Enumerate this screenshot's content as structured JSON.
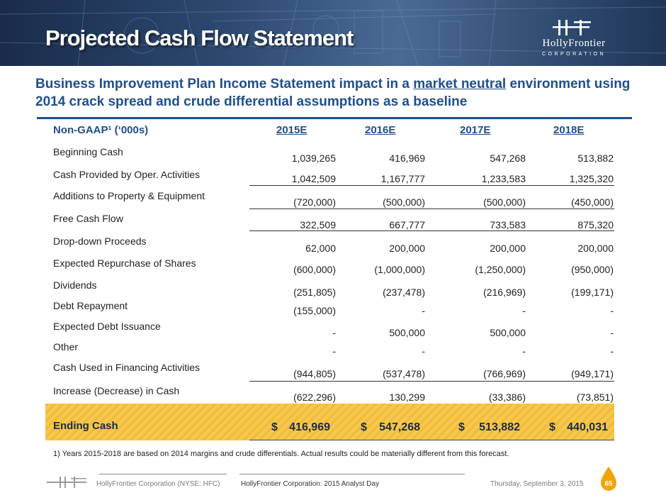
{
  "header": {
    "title": "Projected Cash Flow Statement",
    "logo_name": "HollyFrontier",
    "logo_sub": "CORPORATION"
  },
  "subtitle": {
    "pre": "Business Improvement Plan Income Statement impact in a ",
    "underlined": "market neutral",
    "post": " environment using 2014 crack spread and crude differential assumptions as a baseline"
  },
  "table": {
    "unit_label": "Non-GAAP¹ (‘000s)",
    "columns": [
      "2015E",
      "2016E",
      "2017E",
      "2018E"
    ],
    "rows": [
      {
        "label": "Beginning Cash",
        "values": [
          "1,039,265",
          "416,969",
          "547,268",
          "513,882"
        ]
      },
      {
        "label": "Cash Provided by Oper. Activities",
        "values": [
          "1,042,509",
          "1,167,777",
          "1,233,583",
          "1,325,320"
        ]
      },
      {
        "label": "Additions to Property & Equipment",
        "values": [
          "(720,000)",
          "(500,000)",
          "(500,000)",
          "(450,000)"
        ]
      },
      {
        "label": "Free Cash Flow",
        "values": [
          "322,509",
          "667,777",
          "733,583",
          "875,320"
        ]
      },
      {
        "label": "Drop-down Proceeds",
        "values": [
          "62,000",
          "200,000",
          "200,000",
          "200,000"
        ]
      },
      {
        "label": "Expected Repurchase of Shares",
        "values": [
          "(600,000)",
          "(1,000,000)",
          "(1,250,000)",
          "(950,000)"
        ]
      },
      {
        "label": "Dividends",
        "values": [
          "(251,805)",
          "(237,478)",
          "(216,969)",
          "(199,171)"
        ]
      },
      {
        "label": "Debt Repayment",
        "values": [
          "(155,000)",
          "-",
          "-",
          "-"
        ]
      },
      {
        "label": "Expected Debt Issuance",
        "values": [
          "-",
          "500,000",
          "500,000",
          "-"
        ]
      },
      {
        "label": "Other",
        "values": [
          "-",
          "-",
          "-",
          "-"
        ]
      },
      {
        "label": "Cash Used in Financing Activities",
        "values": [
          "(944,805)",
          "(537,478)",
          "(766,969)",
          "(949,171)"
        ]
      },
      {
        "label": "Increase (Decrease) in Cash",
        "values": [
          "(622,296)",
          "130,299",
          "(33,386)",
          "(73,851)"
        ]
      }
    ],
    "ending": {
      "label": "Ending Cash",
      "currency": "$",
      "values": [
        "416,969",
        "547,268",
        "513,882",
        "440,031"
      ]
    }
  },
  "footnote": "1)   Years 2015-2018 are based on 2014 margins and crude differentials. Actual results could be materially different from this forecast.",
  "footer": {
    "company": "HollyFrontier Corporation (NYSE: HFC)",
    "event": "HollyFrontier Corporation: 2015 Analyst Day",
    "date": "Thursday, September 3, 2015",
    "page_number": "65"
  },
  "colors": {
    "title_blue": "#1f4e8c",
    "ending_band": "#f2bc3d",
    "page_badge": "#f0a500"
  }
}
